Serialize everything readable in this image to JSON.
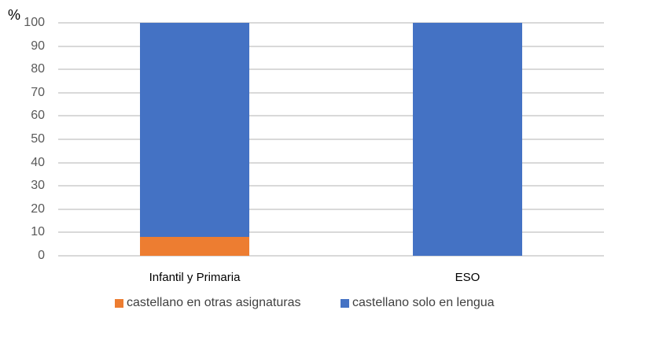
{
  "chart_data": {
    "type": "bar",
    "stacked": true,
    "title": "",
    "xlabel": "",
    "ylabel": "%",
    "ylim": [
      0,
      100
    ],
    "yticks": [
      "0",
      "10",
      "20",
      "30",
      "40",
      "50",
      "60",
      "70",
      "80",
      "90",
      "100"
    ],
    "categories": [
      "Infantil y Primaria",
      "ESO"
    ],
    "series": [
      {
        "name": "castellano en otras asignaturas",
        "color": "#ed7d31",
        "values": [
          8,
          0
        ]
      },
      {
        "name": "castellano solo en lengua",
        "color": "#4472c4",
        "values": [
          92,
          100
        ]
      }
    ],
    "grid": true,
    "legend_position": "bottom"
  },
  "axis": {
    "unit_label": "%"
  },
  "legend": [
    {
      "label": "castellano en otras asignaturas",
      "color": "#ed7d31"
    },
    {
      "label": "castellano solo en lengua",
      "color": "#4472c4"
    }
  ]
}
